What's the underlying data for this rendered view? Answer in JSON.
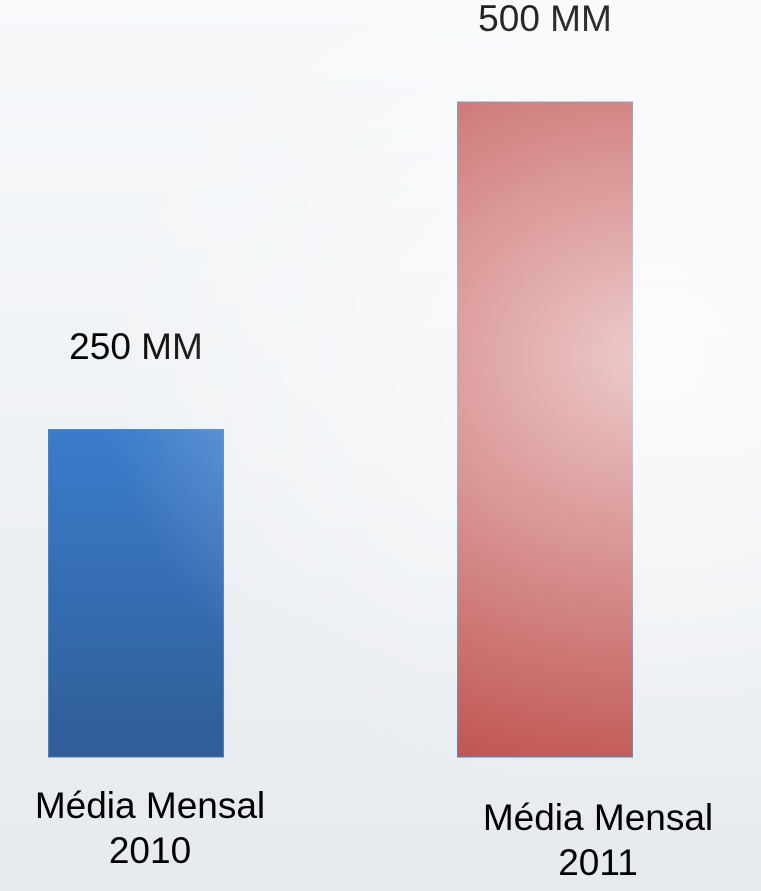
{
  "chart_data": {
    "type": "bar",
    "categories": [
      [
        "Média Mensal",
        "2010"
      ],
      [
        "Média Mensal",
        "2011"
      ]
    ],
    "values": [
      250,
      500
    ],
    "value_labels": [
      "250 MM",
      "500 MM"
    ],
    "colors": [
      "#3a78c3",
      "#c0504d"
    ],
    "ylim": [
      0,
      500
    ],
    "grid": false,
    "legend": "none"
  }
}
